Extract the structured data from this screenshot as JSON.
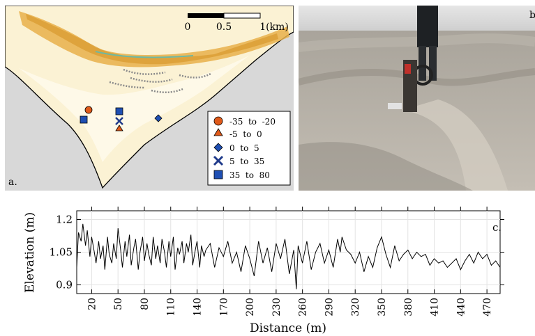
{
  "figure": {
    "panel_a": {
      "label": "a.",
      "scalebar": {
        "ticks": [
          "0",
          "0.5",
          "1(km)"
        ]
      },
      "legend": [
        {
          "label": "-35  to  -20",
          "marker": "circle",
          "color": "#e05a1a"
        },
        {
          "label": "-5  to  0",
          "marker": "triangle",
          "color": "#e05a1a"
        },
        {
          "label": "0  to  5",
          "marker": "diamond",
          "color": "#1f4fb3"
        },
        {
          "label": "5  to  35",
          "marker": "cross",
          "color": "#1f3a8a"
        },
        {
          "label": "35  to  80",
          "marker": "square",
          "color": "#1f4fb3"
        }
      ],
      "colors": {
        "sea": "#d8d8d8",
        "shoal": "#fbf2d4",
        "dune": "#e8b04a",
        "coast": "#000000"
      }
    },
    "panel_b": {
      "label": "b",
      "description_colors": {
        "sand": "#b8b3aa",
        "sky": "#dcdcdc"
      }
    },
    "panel_c": {
      "label": "c."
    }
  },
  "chart_data": {
    "type": "line",
    "xlabel": "Distance (m)",
    "ylabel": "Elevation (m)",
    "x_ticks": [
      20,
      50,
      80,
      110,
      140,
      170,
      200,
      230,
      260,
      290,
      320,
      350,
      380,
      410,
      440,
      470
    ],
    "y_ticks": [
      0.9,
      1.05,
      1.2
    ],
    "y_tick_labels": [
      "0.9",
      "1.05",
      "1.2"
    ],
    "xlim": [
      3,
      485
    ],
    "ylim": [
      0.86,
      1.24
    ],
    "grid": true,
    "series": [
      {
        "x": [
          3,
          5,
          8,
          10,
          13,
          15,
          18,
          20,
          23,
          25,
          28,
          30,
          33,
          35,
          38,
          40,
          43,
          45,
          48,
          50,
          53,
          55,
          58,
          60,
          63,
          65,
          68,
          70,
          73,
          75,
          78,
          80,
          83,
          85,
          88,
          90,
          93,
          95,
          98,
          100,
          103,
          105,
          108,
          110,
          113,
          115,
          118,
          120,
          123,
          125,
          128,
          130,
          133,
          135,
          138,
          140,
          143,
          145,
          148,
          150,
          155,
          160,
          165,
          170,
          175,
          180,
          185,
          190,
          195,
          200,
          205,
          210,
          215,
          220,
          225,
          230,
          235,
          240,
          245,
          250,
          253,
          255,
          260,
          265,
          270,
          275,
          280,
          285,
          290,
          295,
          300,
          303,
          305,
          310,
          315,
          320,
          325,
          330,
          335,
          340,
          345,
          350,
          355,
          360,
          365,
          370,
          375,
          380,
          385,
          390,
          395,
          400,
          405,
          410,
          415,
          420,
          425,
          430,
          435,
          440,
          445,
          450,
          455,
          460,
          465,
          470,
          475,
          480,
          485
        ],
        "y": [
          0.98,
          1.14,
          1.1,
          1.18,
          1.08,
          1.15,
          1.03,
          1.12,
          1.05,
          1.0,
          1.1,
          1.02,
          1.08,
          0.97,
          1.12,
          1.04,
          1.0,
          1.09,
          1.02,
          1.16,
          1.06,
          0.98,
          1.1,
          1.03,
          1.13,
          0.99,
          1.07,
          1.11,
          0.97,
          1.05,
          1.12,
          1.01,
          1.09,
          1.04,
          0.99,
          1.12,
          1.02,
          1.08,
          1.0,
          1.11,
          1.05,
          0.98,
          1.1,
          1.03,
          1.12,
          0.97,
          1.07,
          1.04,
          1.1,
          1.0,
          1.09,
          1.05,
          1.13,
          0.99,
          1.06,
          1.1,
          0.98,
          1.08,
          1.03,
          1.06,
          1.09,
          0.98,
          1.07,
          1.03,
          1.1,
          1.0,
          1.05,
          0.96,
          1.08,
          1.02,
          0.94,
          1.1,
          1.0,
          1.07,
          0.96,
          1.09,
          1.02,
          1.11,
          0.95,
          1.06,
          0.88,
          1.08,
          1.0,
          1.1,
          0.97,
          1.05,
          1.09,
          1.0,
          1.06,
          0.98,
          1.11,
          1.05,
          1.12,
          1.06,
          1.04,
          1.0,
          1.05,
          0.96,
          1.03,
          0.98,
          1.07,
          1.12,
          1.04,
          0.98,
          1.08,
          1.01,
          1.04,
          1.06,
          1.02,
          1.05,
          1.03,
          1.04,
          0.99,
          1.02,
          1.0,
          1.01,
          0.98,
          1.0,
          1.02,
          0.97,
          1.01,
          1.04,
          1.0,
          1.05,
          1.02,
          1.04,
          0.99,
          1.01,
          0.98
        ]
      }
    ]
  }
}
